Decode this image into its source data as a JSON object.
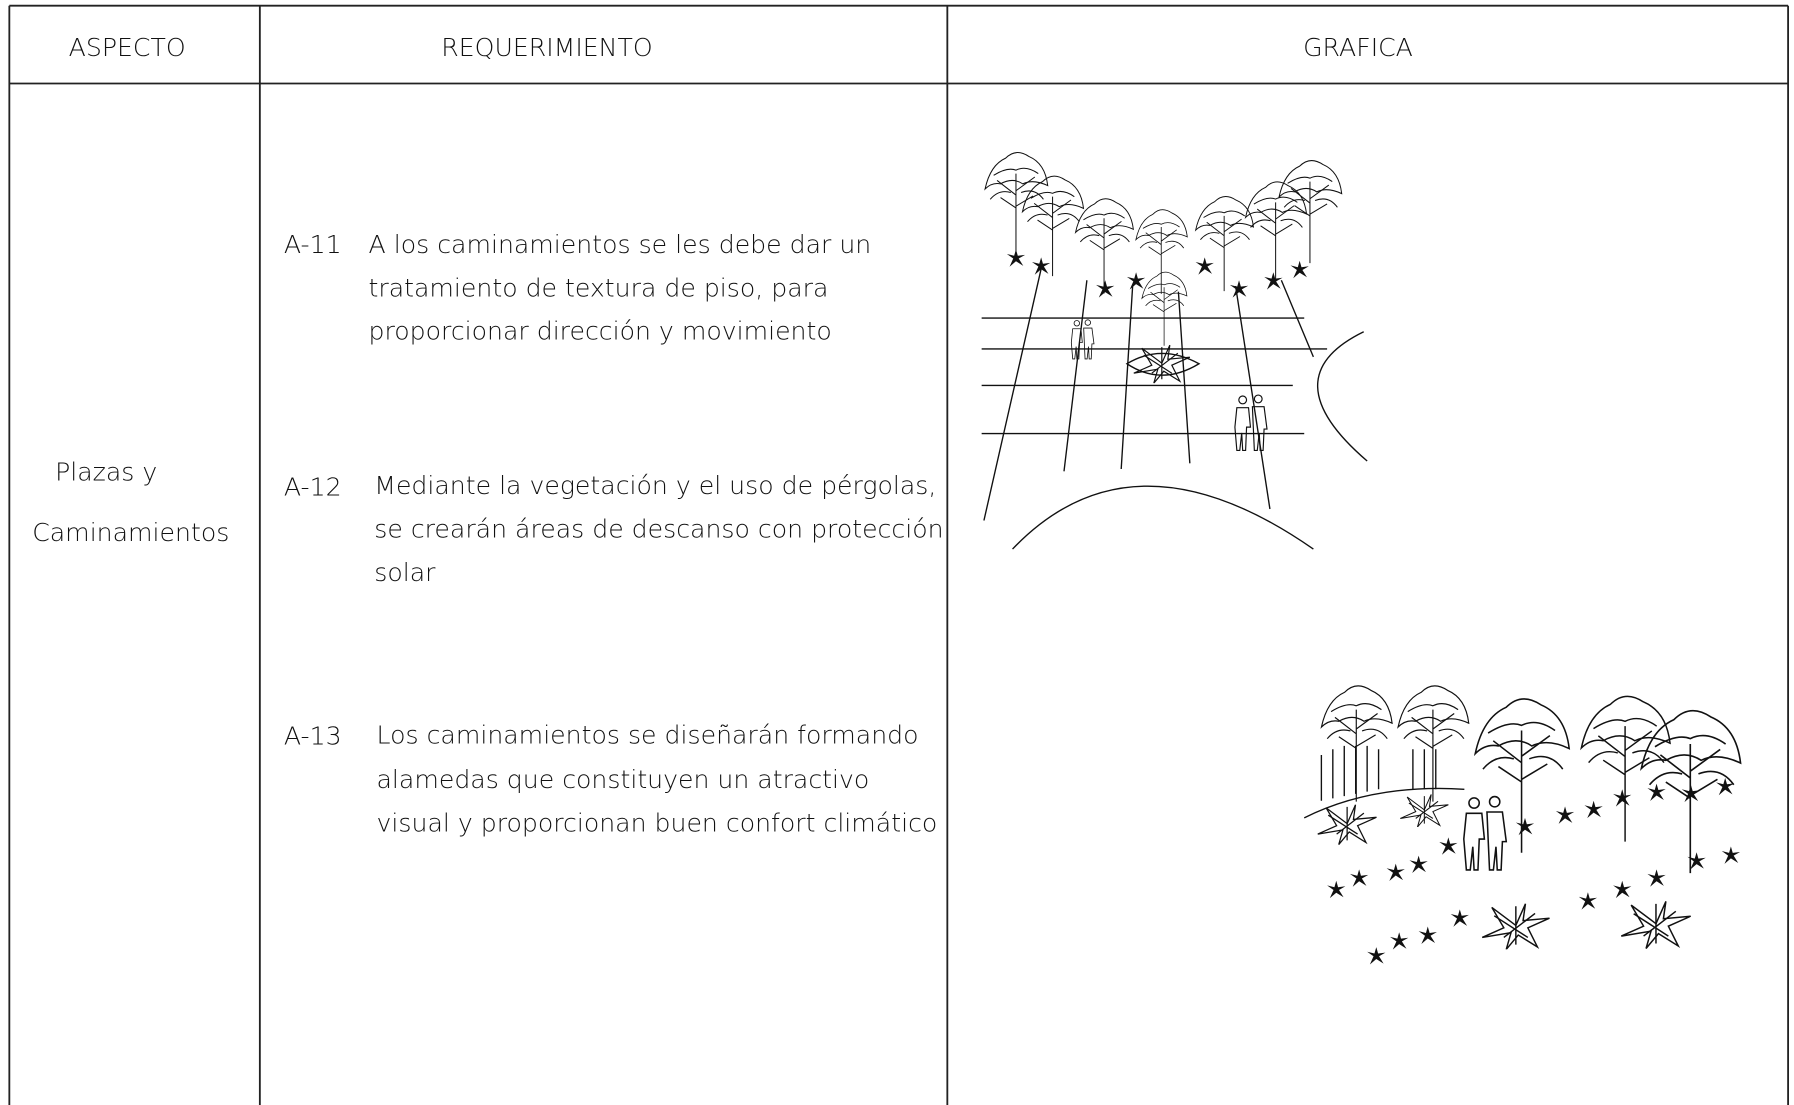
{
  "table": {
    "headers": [
      "ASPECTO",
      "REQUERIMIENTO",
      "GRAFICA"
    ],
    "rows": [
      {
        "aspect": [
          "Plazas y",
          "Caminamientos"
        ],
        "requirements": [
          {
            "code": "A-11",
            "lines": [
              "A los caminamientos se les debe dar un",
              "tratamiento de textura de piso, para",
              "proporcionar dirección y movimiento"
            ]
          },
          {
            "code": "A-12",
            "lines": [
              "Mediante la vegetación y el uso de pérgolas,",
              "se crearán áreas de descanso con protección",
              "solar"
            ]
          },
          {
            "code": "A-13",
            "lines": [
              "Los caminamientos se diseñarán formando",
              "alamedas que constituyen un atractivo",
              "visual y proporcionan buen confort climático"
            ]
          }
        ]
      }
    ]
  }
}
